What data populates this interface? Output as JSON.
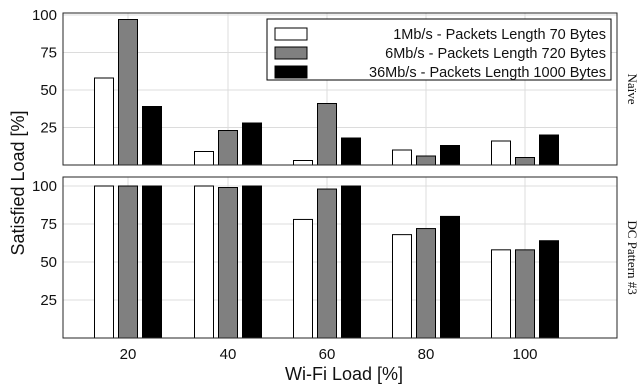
{
  "chart_data": [
    {
      "type": "bar",
      "panel_label": "Naïve",
      "categories": [
        "20",
        "40",
        "60",
        "80",
        "100"
      ],
      "series": [
        {
          "name": "1Mb/s - Packets Length 70 Bytes",
          "color": "#ffffff",
          "values": [
            58,
            9,
            3,
            10,
            16
          ]
        },
        {
          "name": "6Mb/s - Packets Length 720 Bytes",
          "color": "#808080",
          "values": [
            97,
            23,
            41,
            6,
            5
          ]
        },
        {
          "name": "36Mb/s - Packets Length 1000 Bytes",
          "color": "#000000",
          "values": [
            39,
            28,
            18,
            13,
            20
          ]
        }
      ],
      "ylim": [
        0,
        100
      ],
      "yticks": [
        "100",
        "75",
        "50",
        "25"
      ],
      "grid": true,
      "legend": "top-right"
    },
    {
      "type": "bar",
      "panel_label": "DC Pattern #3",
      "categories": [
        "20",
        "40",
        "60",
        "80",
        "100"
      ],
      "series": [
        {
          "name": "1Mb/s - Packets Length 70 Bytes",
          "color": "#ffffff",
          "values": [
            100,
            100,
            78,
            68,
            58
          ]
        },
        {
          "name": "6Mb/s - Packets Length 720 Bytes",
          "color": "#808080",
          "values": [
            100,
            99,
            98,
            72,
            58
          ]
        },
        {
          "name": "36Mb/s - Packets Length 1000 Bytes",
          "color": "#000000",
          "values": [
            100,
            100,
            100,
            80,
            64
          ]
        }
      ],
      "ylim": [
        0,
        100
      ],
      "yticks": [
        "100",
        "75",
        "50",
        "25"
      ],
      "grid": true
    }
  ],
  "axes": {
    "xlabel": "Wi-Fi Load [%]",
    "ylabel": "Satisfied Load [%]"
  }
}
